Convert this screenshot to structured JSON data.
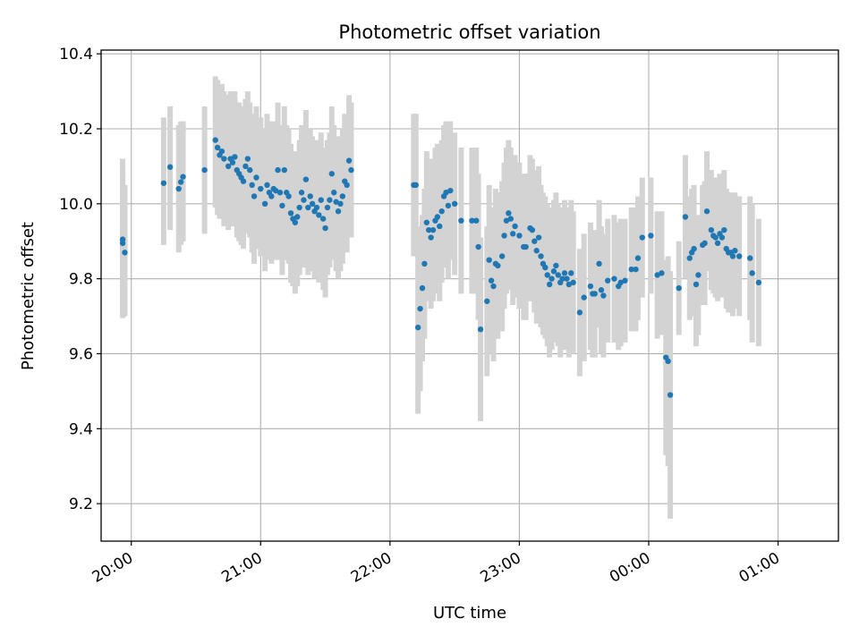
{
  "chart_data": {
    "type": "scatter",
    "title": "Photometric offset variation",
    "xlabel": "UTC time",
    "ylabel": "Photometric offset",
    "x_axis_kind": "time",
    "x_tick_labels": [
      "20:00",
      "21:00",
      "22:00",
      "23:00",
      "00:00",
      "01:00"
    ],
    "x_range_minutes": [
      -14,
      328
    ],
    "y_ticks": [
      9.2,
      9.4,
      9.6,
      9.8,
      10.0,
      10.2,
      10.4
    ],
    "y_tick_labels": [
      "9.2",
      "9.4",
      "9.6",
      "9.8",
      "10.0",
      "10.2",
      "10.4"
    ],
    "ylim": [
      9.1,
      10.41
    ],
    "grid": true,
    "colors": {
      "points": "#1f77b4",
      "error_bars": "#d3d3d3",
      "grid": "#b0b0b0"
    },
    "series": [
      {
        "points": [
          [
            "19:56",
            9.895,
            9.695,
            10.095
          ],
          [
            "19:56",
            9.905,
            9.705,
            10.12
          ],
          [
            "19:57",
            9.87,
            9.7,
            10.05
          ],
          [
            "20:15",
            10.055,
            9.89,
            10.23
          ],
          [
            "20:18",
            10.098,
            9.93,
            10.26
          ],
          [
            "20:22",
            10.04,
            9.87,
            10.21
          ],
          [
            "20:23",
            10.058,
            9.89,
            10.22
          ],
          [
            "20:24",
            10.072,
            9.9,
            10.22
          ],
          [
            "20:34",
            10.09,
            9.92,
            10.26
          ],
          [
            "20:39",
            10.17,
            9.99,
            10.34
          ],
          [
            "20:40",
            10.15,
            9.97,
            10.33
          ],
          [
            "20:41",
            10.13,
            9.96,
            10.3
          ],
          [
            "20:42",
            10.14,
            9.96,
            10.32
          ],
          [
            "20:43",
            10.12,
            9.94,
            10.3
          ],
          [
            "20:45",
            10.1,
            9.93,
            10.29
          ],
          [
            "20:46",
            10.12,
            9.94,
            10.3
          ],
          [
            "20:47",
            10.11,
            9.94,
            10.3
          ],
          [
            "20:48",
            10.125,
            9.95,
            10.3
          ],
          [
            "20:49",
            10.09,
            9.91,
            10.27
          ],
          [
            "20:50",
            10.08,
            9.9,
            10.27
          ],
          [
            "20:51",
            10.07,
            9.89,
            10.26
          ],
          [
            "20:52",
            10.06,
            9.88,
            10.25
          ],
          [
            "20:53",
            10.1,
            9.92,
            10.28
          ],
          [
            "20:54",
            10.12,
            9.94,
            10.3
          ],
          [
            "20:55",
            10.09,
            9.91,
            10.27
          ],
          [
            "20:56",
            10.05,
            9.87,
            10.24
          ],
          [
            "20:57",
            10.02,
            9.84,
            10.21
          ],
          [
            "20:58",
            10.07,
            9.88,
            10.26
          ],
          [
            "21:00",
            10.04,
            9.86,
            10.23
          ],
          [
            "21:02",
            10.0,
            9.82,
            10.2
          ],
          [
            "21:03",
            10.05,
            9.87,
            10.24
          ],
          [
            "21:04",
            10.03,
            9.85,
            10.22
          ],
          [
            "21:05",
            10.02,
            9.84,
            10.2
          ],
          [
            "21:06",
            10.04,
            9.86,
            10.22
          ],
          [
            "21:07",
            10.035,
            9.85,
            10.21
          ],
          [
            "21:08",
            10.09,
            9.91,
            10.27
          ],
          [
            "21:09",
            10.03,
            9.85,
            10.21
          ],
          [
            "21:10",
            9.995,
            9.81,
            10.18
          ],
          [
            "21:11",
            10.09,
            9.91,
            10.26
          ],
          [
            "21:12",
            10.03,
            9.85,
            10.21
          ],
          [
            "21:13",
            10.02,
            9.84,
            10.2
          ],
          [
            "21:14",
            9.975,
            9.79,
            10.16
          ],
          [
            "21:15",
            9.96,
            9.78,
            10.14
          ],
          [
            "21:16",
            9.95,
            9.76,
            10.13
          ],
          [
            "21:17",
            9.965,
            9.78,
            10.14
          ],
          [
            "21:18",
            9.99,
            9.81,
            10.17
          ],
          [
            "21:19",
            10.03,
            9.85,
            10.21
          ],
          [
            "21:20",
            10.01,
            9.83,
            10.19
          ],
          [
            "21:21",
            10.065,
            9.89,
            10.25
          ],
          [
            "21:22",
            9.99,
            9.81,
            10.17
          ],
          [
            "21:23",
            10.02,
            9.84,
            10.2
          ],
          [
            "21:24",
            10.0,
            9.82,
            10.18
          ],
          [
            "21:25",
            9.98,
            9.8,
            10.16
          ],
          [
            "21:26",
            9.99,
            9.81,
            10.17
          ],
          [
            "21:27",
            9.97,
            9.79,
            10.15
          ],
          [
            "21:28",
            10.01,
            9.83,
            10.19
          ],
          [
            "21:29",
            9.96,
            9.77,
            10.15
          ],
          [
            "21:30",
            9.935,
            9.75,
            10.12
          ],
          [
            "21:31",
            9.99,
            9.81,
            10.17
          ],
          [
            "21:32",
            10.01,
            9.83,
            10.19
          ],
          [
            "21:33",
            10.08,
            9.9,
            10.26
          ],
          [
            "21:34",
            10.03,
            9.85,
            10.21
          ],
          [
            "21:35",
            10.005,
            9.82,
            10.18
          ],
          [
            "21:36",
            9.98,
            9.8,
            10.16
          ],
          [
            "21:37",
            10.0,
            9.82,
            10.18
          ],
          [
            "21:38",
            10.02,
            9.84,
            10.2
          ],
          [
            "21:39",
            10.06,
            9.88,
            10.24
          ],
          [
            "21:40",
            10.05,
            9.87,
            10.23
          ],
          [
            "21:41",
            10.115,
            9.94,
            10.29
          ],
          [
            "21:42",
            10.09,
            9.91,
            10.27
          ],
          [
            "22:11",
            10.05,
            9.86,
            10.24
          ],
          [
            "22:12",
            10.05,
            9.86,
            10.24
          ],
          [
            "22:13",
            9.67,
            9.44,
            9.9
          ],
          [
            "22:14",
            9.72,
            9.5,
            9.94
          ],
          [
            "22:15",
            9.775,
            9.58,
            9.97
          ],
          [
            "22:16",
            9.84,
            9.64,
            10.04
          ],
          [
            "22:17",
            9.95,
            9.76,
            10.14
          ],
          [
            "22:18",
            9.93,
            9.74,
            10.12
          ],
          [
            "22:19",
            9.91,
            9.72,
            10.1
          ],
          [
            "22:20",
            9.93,
            9.74,
            10.12
          ],
          [
            "22:21",
            9.955,
            9.76,
            10.15
          ],
          [
            "22:22",
            9.965,
            9.77,
            10.16
          ],
          [
            "22:23",
            9.94,
            9.74,
            10.14
          ],
          [
            "22:24",
            9.98,
            9.79,
            10.17
          ],
          [
            "22:25",
            10.02,
            9.83,
            10.21
          ],
          [
            "22:26",
            10.03,
            9.84,
            10.22
          ],
          [
            "22:27",
            9.995,
            9.8,
            10.19
          ],
          [
            "22:28",
            10.035,
            9.85,
            10.22
          ],
          [
            "22:30",
            10.0,
            9.81,
            10.19
          ],
          [
            "22:33",
            9.955,
            9.76,
            10.15
          ],
          [
            "22:38",
            9.955,
            9.76,
            10.15
          ],
          [
            "22:40",
            9.955,
            9.76,
            10.15
          ],
          [
            "22:41",
            9.885,
            9.69,
            10.08
          ],
          [
            "22:42",
            9.665,
            9.42,
            9.91
          ],
          [
            "22:45",
            9.74,
            9.54,
            9.94
          ],
          [
            "22:46",
            9.85,
            9.65,
            10.05
          ],
          [
            "22:47",
            9.795,
            9.6,
            9.99
          ],
          [
            "22:48",
            9.78,
            9.58,
            9.98
          ],
          [
            "22:49",
            9.84,
            9.64,
            10.04
          ],
          [
            "22:50",
            9.835,
            9.64,
            10.03
          ],
          [
            "22:52",
            9.86,
            9.66,
            10.06
          ],
          [
            "22:53",
            9.915,
            9.72,
            10.11
          ],
          [
            "22:54",
            9.955,
            9.76,
            10.15
          ],
          [
            "22:55",
            9.975,
            9.78,
            10.17
          ],
          [
            "22:56",
            9.96,
            9.77,
            10.15
          ],
          [
            "22:57",
            9.92,
            9.73,
            10.11
          ],
          [
            "22:58",
            9.94,
            9.75,
            10.13
          ],
          [
            "23:00",
            9.915,
            9.72,
            10.11
          ],
          [
            "23:02",
            9.885,
            9.69,
            10.08
          ],
          [
            "23:03",
            9.885,
            9.69,
            10.08
          ],
          [
            "23:05",
            9.935,
            9.74,
            10.13
          ],
          [
            "23:06",
            9.93,
            9.74,
            10.12
          ],
          [
            "23:07",
            9.9,
            9.71,
            10.09
          ],
          [
            "23:08",
            9.875,
            9.68,
            10.07
          ],
          [
            "23:09",
            9.91,
            9.72,
            10.1
          ],
          [
            "23:10",
            9.86,
            9.67,
            10.05
          ],
          [
            "23:11",
            9.84,
            9.65,
            10.03
          ],
          [
            "23:12",
            9.83,
            9.64,
            10.02
          ],
          [
            "23:13",
            9.81,
            9.62,
            10.0
          ],
          [
            "23:14",
            9.785,
            9.59,
            9.98
          ],
          [
            "23:15",
            9.8,
            9.61,
            9.99
          ],
          [
            "23:16",
            9.82,
            9.63,
            10.01
          ],
          [
            "23:17",
            9.835,
            9.64,
            10.03
          ],
          [
            "23:18",
            9.81,
            9.62,
            10.0
          ],
          [
            "23:19",
            9.79,
            9.59,
            9.99
          ],
          [
            "23:20",
            9.8,
            9.61,
            9.99
          ],
          [
            "23:21",
            9.815,
            9.62,
            10.01
          ],
          [
            "23:22",
            9.8,
            9.61,
            9.99
          ],
          [
            "23:23",
            9.785,
            9.59,
            9.98
          ],
          [
            "23:24",
            9.815,
            9.62,
            10.01
          ],
          [
            "23:25",
            9.79,
            9.6,
            9.98
          ],
          [
            "23:28",
            9.71,
            9.54,
            9.88
          ],
          [
            "23:30",
            9.75,
            9.58,
            9.92
          ],
          [
            "23:33",
            9.78,
            9.61,
            9.95
          ],
          [
            "23:34",
            9.76,
            9.59,
            9.93
          ],
          [
            "23:35",
            9.76,
            9.59,
            9.93
          ],
          [
            "23:37",
            9.84,
            9.67,
            10.01
          ],
          [
            "23:38",
            9.77,
            9.6,
            9.94
          ],
          [
            "23:39",
            9.755,
            9.59,
            9.92
          ],
          [
            "23:41",
            9.795,
            9.63,
            9.96
          ],
          [
            "23:44",
            9.8,
            9.63,
            9.97
          ],
          [
            "23:46",
            9.78,
            9.61,
            9.95
          ],
          [
            "23:47",
            9.79,
            9.62,
            9.96
          ],
          [
            "23:49",
            9.795,
            9.63,
            9.96
          ],
          [
            "23:52",
            9.825,
            9.66,
            9.99
          ],
          [
            "23:54",
            9.825,
            9.66,
            9.99
          ],
          [
            "23:55",
            9.855,
            9.69,
            10.02
          ],
          [
            "23:57",
            9.91,
            9.75,
            10.07
          ],
          [
            "00:01",
            9.915,
            9.76,
            10.07
          ],
          [
            "00:04",
            9.81,
            9.64,
            9.98
          ],
          [
            "00:06",
            9.815,
            9.65,
            9.98
          ],
          [
            "00:08",
            9.59,
            9.33,
            9.85
          ],
          [
            "00:09",
            9.58,
            9.3,
            9.86
          ],
          [
            "00:10",
            9.49,
            9.16,
            9.82
          ],
          [
            "00:14",
            9.775,
            9.65,
            9.9
          ],
          [
            "00:17",
            9.965,
            9.8,
            10.13
          ],
          [
            "00:19",
            9.855,
            9.69,
            10.02
          ],
          [
            "00:20",
            9.87,
            9.7,
            10.04
          ],
          [
            "00:21",
            9.88,
            9.71,
            10.05
          ],
          [
            "00:22",
            9.785,
            9.62,
            9.95
          ],
          [
            "00:23",
            9.81,
            9.65,
            9.97
          ],
          [
            "00:25",
            9.89,
            9.73,
            10.05
          ],
          [
            "00:26",
            9.895,
            9.73,
            10.06
          ],
          [
            "00:27",
            9.98,
            9.82,
            10.14
          ],
          [
            "00:29",
            9.93,
            9.77,
            10.09
          ],
          [
            "00:30",
            9.915,
            9.76,
            10.07
          ],
          [
            "00:31",
            9.91,
            9.75,
            10.07
          ],
          [
            "00:32",
            9.895,
            9.74,
            10.05
          ],
          [
            "00:33",
            9.92,
            9.76,
            10.08
          ],
          [
            "00:34",
            9.91,
            9.75,
            10.07
          ],
          [
            "00:35",
            9.93,
            9.77,
            10.09
          ],
          [
            "00:36",
            9.88,
            9.72,
            10.04
          ],
          [
            "00:37",
            9.87,
            9.71,
            10.03
          ],
          [
            "00:38",
            9.87,
            9.71,
            10.03
          ],
          [
            "00:39",
            9.86,
            9.7,
            10.02
          ],
          [
            "00:40",
            9.875,
            9.72,
            10.03
          ],
          [
            "00:42",
            9.86,
            9.7,
            10.02
          ],
          [
            "00:47",
            9.855,
            9.69,
            10.02
          ],
          [
            "00:48",
            9.815,
            9.63,
            10.0
          ],
          [
            "00:51",
            9.79,
            9.62,
            9.96
          ]
        ]
      }
    ]
  }
}
